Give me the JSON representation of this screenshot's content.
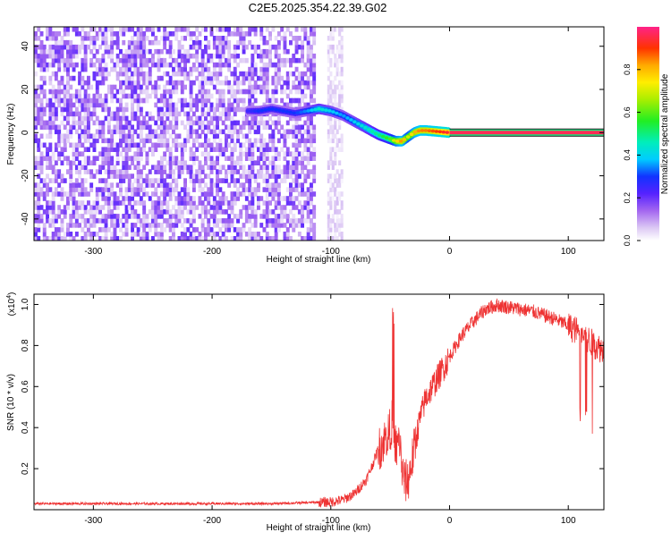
{
  "title": "C2E5.2025.354.22.39.G02",
  "colors": {
    "snr_line": "#ee3333",
    "frame": "#000000",
    "spectrogram_purple": "#7a2fe8",
    "band_line": "#111111",
    "band_fill": "#ff2a55"
  },
  "chart_data": [
    {
      "id": "spectrogram",
      "type": "heatmap",
      "title": "",
      "xlabel": "Height of straight line (km)",
      "ylabel": "Frequency (Hz)",
      "xlim": [
        -350,
        130
      ],
      "ylim": [
        -50,
        49
      ],
      "xticks": [
        -300,
        -200,
        -100,
        0,
        100
      ],
      "yticks": [
        -40,
        -20,
        0,
        20,
        40
      ],
      "xtick_labels": [
        "-300",
        "-200",
        "-100",
        "0",
        "100"
      ],
      "ytick_labels": [
        "-40",
        "-20",
        "0",
        "20",
        "40"
      ],
      "noise_region": {
        "x_from": -350,
        "x_to": -113,
        "amplitude": 0.15
      },
      "noise_strip": {
        "x_from": -103,
        "x_to": -90,
        "amplitude": 0.05
      },
      "signal_track": {
        "x": [
          -170,
          -160,
          -150,
          -140,
          -130,
          -120,
          -110,
          -100,
          -90,
          -80,
          -70,
          -60,
          -50,
          -45,
          -40,
          -35,
          -30,
          -25,
          -20,
          -10,
          0
        ],
        "y": [
          10,
          10,
          11,
          10,
          9,
          10,
          11,
          10,
          8,
          5,
          2,
          -1,
          -3,
          -4,
          -4,
          -2,
          0,
          1,
          1,
          0.5,
          0
        ],
        "amplitude": [
          0.25,
          0.3,
          0.3,
          0.3,
          0.3,
          0.35,
          0.45,
          0.4,
          0.35,
          0.4,
          0.45,
          0.5,
          0.6,
          0.75,
          0.85,
          0.7,
          0.8,
          0.85,
          0.85,
          0.9,
          0.95
        ]
      },
      "steady_band": {
        "x_from": 0,
        "x_to": 130,
        "frequency": 0,
        "amplitude": 1.0
      },
      "colorbar": {
        "label": "Normalized spectral amplitude",
        "ticks": [
          "0.0",
          "0.2",
          "0.4",
          "0.6",
          "0.8"
        ],
        "tick_values": [
          0.0,
          0.2,
          0.4,
          0.6,
          0.8
        ],
        "range": [
          0,
          1
        ]
      }
    },
    {
      "id": "snr",
      "type": "line",
      "title": "",
      "xlabel": "Height of straight line (km)",
      "ylabel": "SNR (10 * v/v)",
      "y_multiplier_label": "(x10",
      "y_multiplier_exp": "4",
      "y_multiplier_close": ")",
      "xlim": [
        -350,
        130
      ],
      "ylim": [
        0,
        1.05
      ],
      "xticks": [
        -300,
        -200,
        -100,
        0,
        100
      ],
      "yticks": [
        0.2,
        0.4,
        0.6,
        0.8,
        1.0
      ],
      "xtick_labels": [
        "-300",
        "-200",
        "-100",
        "0",
        "100"
      ],
      "ytick_labels": [
        "0.2",
        "0.4",
        "0.6",
        "0.8",
        "1.0"
      ],
      "series": [
        {
          "x": [
            -350,
            -300,
            -250,
            -200,
            -150,
            -120,
            -100,
            -90,
            -80,
            -70,
            -65,
            -60,
            -55,
            -50,
            -48,
            -45,
            -42,
            -40,
            -38,
            -35,
            -30,
            -25,
            -20,
            -15,
            -10,
            -5,
            0,
            10,
            20,
            30,
            40,
            50,
            60,
            70,
            80,
            90,
            100,
            110,
            120,
            130
          ],
          "y": [
            0.03,
            0.03,
            0.03,
            0.03,
            0.03,
            0.035,
            0.04,
            0.05,
            0.08,
            0.15,
            0.22,
            0.3,
            0.35,
            0.4,
            0.45,
            0.3,
            0.35,
            0.2,
            0.15,
            0.15,
            0.3,
            0.45,
            0.55,
            0.6,
            0.65,
            0.7,
            0.75,
            0.85,
            0.92,
            0.98,
            1.0,
            0.99,
            0.98,
            0.97,
            0.95,
            0.93,
            0.9,
            0.87,
            0.82,
            0.78
          ]
        }
      ]
    }
  ]
}
